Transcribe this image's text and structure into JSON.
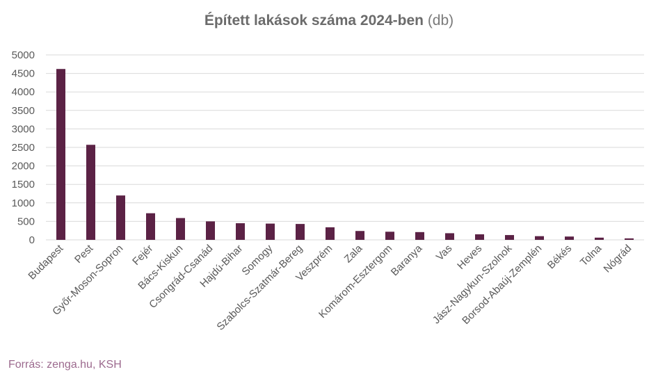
{
  "title": {
    "main": "Épített lakások száma 2024-ben",
    "unit": "(db)"
  },
  "source": "Forrás: zenga.hu, KSH",
  "colors": {
    "bar": "#5b2245",
    "grid": "#d9d9d9",
    "axis_text": "#595959",
    "source": "#9c6a8e"
  },
  "chart_data": {
    "type": "bar",
    "title": "Épített lakások száma 2024-ben (db)",
    "xlabel": "",
    "ylabel": "",
    "ylim": [
      0,
      5000
    ],
    "yticks": [
      0,
      500,
      1000,
      1500,
      2000,
      2500,
      3000,
      3500,
      4000,
      4500,
      5000
    ],
    "grid": true,
    "legend": "none",
    "categories": [
      "Budapest",
      "Pest",
      "Győr-Moson-Sopron",
      "Fejér",
      "Bács-Kiskun",
      "Csongrád-Csanád",
      "Hajdú-Bihar",
      "Somogy",
      "Szabolcs-Szatmár-Bereg",
      "Veszprém",
      "Zala",
      "Komárom-Esztergom",
      "Baranya",
      "Vas",
      "Heves",
      "Jász-Nagykun-Szolnok",
      "Borsod-Abaúj-Zemplén",
      "Békés",
      "Tolna",
      "Nógrád"
    ],
    "values": [
      4620,
      2570,
      1200,
      720,
      590,
      500,
      450,
      440,
      430,
      340,
      240,
      220,
      210,
      180,
      150,
      130,
      100,
      90,
      60,
      40
    ]
  }
}
